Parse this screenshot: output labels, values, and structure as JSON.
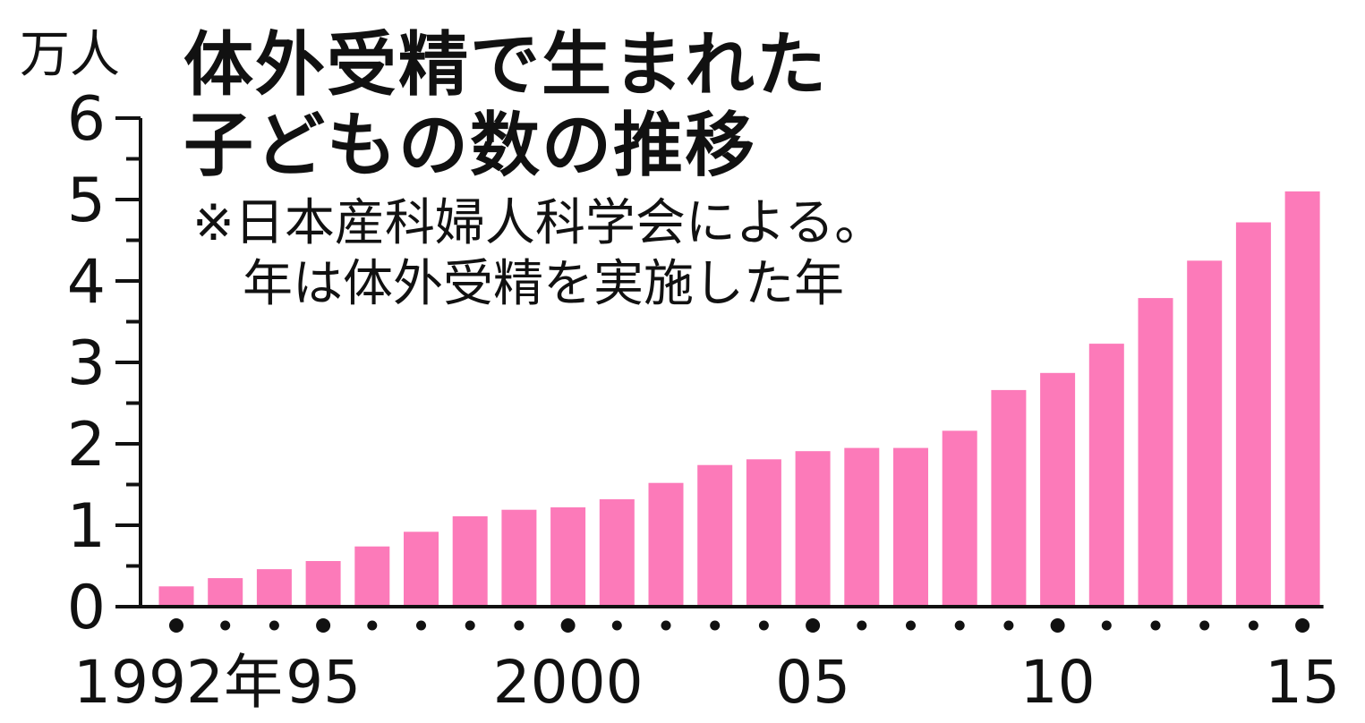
{
  "title_lines": [
    "体外受精で生まれた",
    "子どもの数の推移"
  ],
  "note_lines": [
    "※日本産科婦人科学会による。",
    "年は体外受精を実施した年"
  ],
  "y_unit": "万人",
  "colors": {
    "bar": "#fc7ab9",
    "axis": "#111111",
    "text": "#111111",
    "background": "#ffffff"
  },
  "chart_data": {
    "type": "bar",
    "title": "体外受精で生まれた子どもの数の推移",
    "ylabel": "万人",
    "xlabel": "",
    "ylim": [
      0,
      6
    ],
    "y_ticks": [
      "0",
      "1",
      "2",
      "3",
      "4",
      "5",
      "6"
    ],
    "x_tick_labels": [
      {
        "index": 0,
        "label": "1992年"
      },
      {
        "index": 3,
        "label": "95"
      },
      {
        "index": 8,
        "label": "2000"
      },
      {
        "index": 13,
        "label": "05"
      },
      {
        "index": 18,
        "label": "10"
      },
      {
        "index": 23,
        "label": "15"
      }
    ],
    "major_marker_indices": [
      0,
      3,
      8,
      13,
      18,
      23
    ],
    "categories": [
      "1992",
      "1993",
      "1994",
      "1995",
      "1996",
      "1997",
      "1998",
      "1999",
      "2000",
      "2001",
      "2002",
      "2003",
      "2004",
      "2005",
      "2006",
      "2007",
      "2008",
      "2009",
      "2010",
      "2011",
      "2012",
      "2013",
      "2014",
      "2015"
    ],
    "values": [
      0.25,
      0.35,
      0.46,
      0.56,
      0.74,
      0.92,
      1.11,
      1.19,
      1.22,
      1.32,
      1.52,
      1.74,
      1.81,
      1.91,
      1.95,
      1.95,
      2.16,
      2.66,
      2.87,
      3.23,
      3.79,
      4.25,
      4.72,
      5.1
    ],
    "grid": false,
    "legend": "none"
  }
}
